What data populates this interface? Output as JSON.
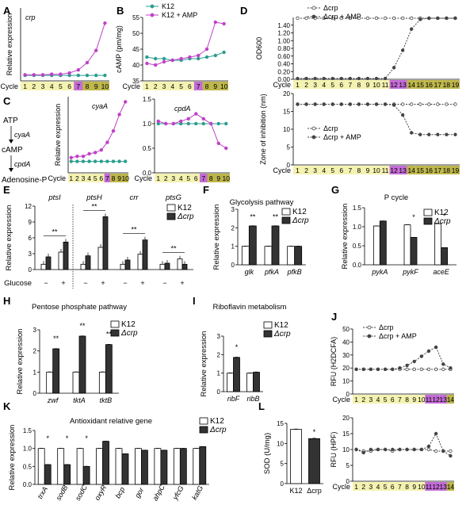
{
  "figure": {
    "panels": {
      "A": {
        "letter": "A"
      },
      "B": {
        "letter": "B"
      },
      "C": {
        "letter": "C"
      },
      "D": {
        "letter": "D"
      },
      "E": {
        "letter": "E"
      },
      "F": {
        "letter": "F"
      },
      "G": {
        "letter": "G"
      },
      "H": {
        "letter": "H"
      },
      "I": {
        "letter": "I"
      },
      "J": {
        "letter": "J"
      },
      "K": {
        "letter": "K"
      },
      "L": {
        "letter": "L"
      }
    },
    "pathway": {
      "atp": "ATP",
      "cyaA": "cyaA",
      "camp": "cAMP",
      "cpdA": "cpdA",
      "adenosine": "Adenosine-P"
    },
    "cycle_word": "Cycle",
    "colors": {
      "k12": "#2a9d8f",
      "amp": "#c040c8",
      "crp": "#333333",
      "hl_yellow": "#f4f2b0",
      "hl_purple": "#c36bd6",
      "hl_olive": "#bdb64a"
    }
  },
  "chart_data": [
    {
      "id": "A",
      "type": "line",
      "ylabel": "Relative expression",
      "xlabel": "Cycle",
      "inset_label": "crp",
      "ylim": [
        0,
        12
      ],
      "categories": [
        "1",
        "2",
        "3",
        "4",
        "5",
        "6",
        "7",
        "8",
        "9",
        "10"
      ],
      "series": [
        {
          "name": "K12",
          "color": "#2a9d8f",
          "values": [
            0.9,
            0.9,
            0.9,
            0.9,
            0.9,
            0.9,
            0.9,
            0.9,
            0.9,
            0.9
          ]
        },
        {
          "name": "K12 + AMP",
          "color": "#c040c8",
          "values": [
            1.0,
            1.0,
            1.0,
            1.1,
            1.1,
            1.3,
            1.8,
            3.0,
            5.0,
            9.5
          ]
        }
      ]
    },
    {
      "id": "B",
      "type": "line",
      "ylabel": "cAMP (pm/mg)",
      "xlabel": "Cycle",
      "ylim": [
        35,
        55
      ],
      "yticks": [
        35,
        40,
        45,
        50,
        55
      ],
      "categories": [
        "1",
        "2",
        "3",
        "4",
        "5",
        "6",
        "7",
        "8",
        "9",
        "10"
      ],
      "series": [
        {
          "name": "K12",
          "color": "#2a9d8f",
          "values": [
            42.5,
            42,
            42,
            41.5,
            41.5,
            42,
            42,
            42.5,
            43,
            44
          ]
        },
        {
          "name": "K12 + AMP",
          "color": "#c040c8",
          "values": [
            40.5,
            40,
            41,
            41.5,
            42,
            42.5,
            43,
            45,
            53.5,
            53
          ]
        }
      ]
    },
    {
      "id": "C1",
      "type": "line",
      "ylabel": "Relative expression",
      "xlabel": "Cycle",
      "inset_label": "cyaA",
      "ylim": [
        0,
        6
      ],
      "categories": [
        "1",
        "2",
        "3",
        "4",
        "5",
        "6",
        "7",
        "8",
        "9",
        "10"
      ],
      "series": [
        {
          "name": "K12",
          "color": "#2a9d8f",
          "values": [
            0.9,
            0.9,
            0.9,
            0.9,
            0.9,
            0.9,
            0.9,
            0.9,
            0.9,
            0.9
          ]
        },
        {
          "name": "K12 + AMP",
          "color": "#c040c8",
          "values": [
            1.2,
            1.3,
            1.3,
            1.5,
            1.6,
            1.8,
            2.4,
            3.3,
            4.6,
            5.6
          ]
        }
      ]
    },
    {
      "id": "C2",
      "type": "line",
      "xlabel": "Cycle",
      "inset_label": "cpdA",
      "ylim": [
        0,
        1.5
      ],
      "yticks": [
        0.0,
        0.5,
        1.0,
        1.5
      ],
      "categories": [
        "1",
        "2",
        "3",
        "4",
        "5",
        "6",
        "7",
        "8",
        "9",
        "10"
      ],
      "series": [
        {
          "name": "K12",
          "color": "#2a9d8f",
          "values": [
            1.0,
            1.0,
            1.0,
            1.0,
            1.0,
            1.0,
            1.0,
            1.0,
            1.0,
            1.0
          ]
        },
        {
          "name": "K12 + AMP",
          "color": "#c040c8",
          "values": [
            1.05,
            1.0,
            1.0,
            1.05,
            1.1,
            1.2,
            1.1,
            1.0,
            0.6,
            0.5
          ]
        }
      ]
    },
    {
      "id": "D1",
      "type": "line",
      "ylabel": "OD600",
      "xlabel": "Cycle",
      "ylim": [
        0,
        1.6
      ],
      "yticks": [
        0.0,
        0.2,
        0.4,
        0.6,
        0.8,
        1.0,
        1.2,
        1.4
      ],
      "categories": [
        "1",
        "2",
        "3",
        "4",
        "5",
        "6",
        "7",
        "8",
        "9",
        "10",
        "11",
        "12",
        "13",
        "14",
        "15",
        "16",
        "17",
        "18",
        "19"
      ],
      "series": [
        {
          "name": "Δcrp",
          "style": "open",
          "values": [
            1.58,
            1.58,
            1.58,
            1.58,
            1.58,
            1.58,
            1.58,
            1.58,
            1.58,
            1.58,
            1.58,
            1.58,
            1.58,
            1.58,
            1.58,
            1.58,
            1.58,
            1.58,
            1.58
          ]
        },
        {
          "name": "Δcrp + AMP",
          "style": "filled",
          "values": [
            0.02,
            0.02,
            0.02,
            0.02,
            0.02,
            0.02,
            0.02,
            0.02,
            0.02,
            0.02,
            0.02,
            0.3,
            0.75,
            1.3,
            1.55,
            1.58,
            1.58,
            1.58,
            1.58
          ]
        }
      ]
    },
    {
      "id": "D2",
      "type": "line",
      "ylabel": "Zone of inhibition (nm)",
      "xlabel": "Cycle",
      "ylim": [
        0,
        20
      ],
      "yticks": [
        0,
        5,
        10,
        15,
        20
      ],
      "categories": [
        "1",
        "2",
        "3",
        "4",
        "5",
        "6",
        "7",
        "8",
        "9",
        "10",
        "11",
        "12",
        "13",
        "14",
        "15",
        "16",
        "17",
        "18",
        "19"
      ],
      "series": [
        {
          "name": "Δcrp",
          "style": "open",
          "values": [
            17,
            17,
            17,
            17,
            17,
            17,
            17,
            17,
            17,
            17,
            17,
            17,
            17,
            17,
            17,
            17,
            17,
            17,
            17
          ]
        },
        {
          "name": "Δcrp + AMP",
          "style": "filled",
          "values": [
            17,
            17,
            17,
            17,
            17,
            17,
            17,
            17,
            17,
            17,
            17,
            16.8,
            14,
            9,
            8.5,
            8.5,
            8.5,
            8.5,
            8.5
          ]
        }
      ]
    },
    {
      "id": "E",
      "type": "bar",
      "ylabel": "Relative expression",
      "ylim": [
        0,
        12
      ],
      "yticks": [
        0,
        3,
        6,
        9,
        12
      ],
      "groups": [
        "ptsI",
        "ptsH",
        "crr",
        "ptsG"
      ],
      "conditions": [
        "−",
        "+"
      ],
      "condition_label": "Glucose",
      "series": [
        {
          "name": "K12",
          "values": [
            1.0,
            3.3,
            1.0,
            4.2,
            1.0,
            2.9,
            1.0,
            2.0
          ]
        },
        {
          "name": "Δcrp",
          "values": [
            2.4,
            5.2,
            2.6,
            10.0,
            1.8,
            5.6,
            1.2,
            1.0
          ]
        }
      ],
      "stars": [
        "**",
        "**",
        "**",
        "**"
      ]
    },
    {
      "id": "F",
      "type": "bar",
      "title": "Glycolysis pathway",
      "ylabel": "Relative expression",
      "ylim": [
        0,
        3
      ],
      "yticks": [
        0,
        1,
        2,
        3
      ],
      "categories": [
        "glk",
        "pfkA",
        "pfkB"
      ],
      "series": [
        {
          "name": "K12",
          "values": [
            1.0,
            1.0,
            1.0
          ]
        },
        {
          "name": "Δcrp",
          "values": [
            2.1,
            2.1,
            1.0
          ]
        }
      ],
      "stars": [
        "**",
        "**",
        ""
      ]
    },
    {
      "id": "G",
      "type": "bar",
      "title": "P cycle",
      "ylabel": "Relative expression",
      "ylim": [
        0,
        1.5
      ],
      "yticks": [
        0.0,
        0.5,
        1.0,
        1.5
      ],
      "categories": [
        "pykA",
        "pykF",
        "aceE"
      ],
      "series": [
        {
          "name": "K12",
          "values": [
            1.02,
            1.05,
            1.08
          ]
        },
        {
          "name": "Δcrp",
          "values": [
            1.15,
            0.72,
            0.45
          ]
        }
      ],
      "stars": [
        "",
        "*",
        "*"
      ]
    },
    {
      "id": "H",
      "type": "bar",
      "title": "Pentose phosphate pathway",
      "ylabel": "Relative expression",
      "ylim": [
        0,
        3
      ],
      "yticks": [
        0,
        1,
        2,
        3
      ],
      "categories": [
        "zwf",
        "tktA",
        "tktB"
      ],
      "series": [
        {
          "name": "K12",
          "values": [
            1.0,
            1.0,
            1.0
          ]
        },
        {
          "name": "Δcrp",
          "values": [
            2.1,
            2.7,
            2.3
          ]
        }
      ],
      "stars": [
        "**",
        "**",
        "**"
      ]
    },
    {
      "id": "I",
      "type": "bar",
      "title": "Riboflavin metabolism",
      "ylabel": "Relative expression",
      "ylim": [
        0,
        3
      ],
      "yticks": [
        0,
        1,
        2,
        3
      ],
      "categories": [
        "ribF",
        "ribB"
      ],
      "series": [
        {
          "name": "K12",
          "values": [
            1.0,
            1.0
          ]
        },
        {
          "name": "Δcrp",
          "values": [
            1.85,
            1.05
          ]
        }
      ],
      "stars": [
        "*",
        ""
      ]
    },
    {
      "id": "J1",
      "type": "line",
      "ylabel": "RFU (H2DCFA)",
      "xlabel": "Cycle",
      "ylim": [
        0,
        50
      ],
      "yticks": [
        0,
        10,
        20,
        30,
        40,
        50
      ],
      "categories": [
        "1",
        "2",
        "3",
        "4",
        "5",
        "6",
        "7",
        "8",
        "9",
        "10",
        "11",
        "12",
        "13",
        "14"
      ],
      "series": [
        {
          "name": "Δcrp",
          "style": "open",
          "values": [
            19,
            19,
            19,
            19,
            19,
            19,
            19,
            19,
            19,
            19,
            19,
            19,
            19,
            19
          ]
        },
        {
          "name": "Δcrp + AMP",
          "style": "filled",
          "values": [
            19,
            19,
            19,
            19,
            19,
            19,
            20,
            22,
            25,
            29,
            33,
            36,
            23,
            20
          ]
        }
      ]
    },
    {
      "id": "J2",
      "type": "line",
      "ylabel": "RFU (HPF)",
      "xlabel": "Cycle",
      "ylim": [
        0,
        20
      ],
      "yticks": [
        0,
        5,
        10,
        15,
        20
      ],
      "categories": [
        "1",
        "2",
        "3",
        "4",
        "5",
        "6",
        "7",
        "8",
        "9",
        "10",
        "11",
        "12",
        "13",
        "14"
      ],
      "series": [
        {
          "name": "Δcrp",
          "style": "open",
          "values": [
            10,
            9.5,
            9.5,
            10,
            10,
            9.5,
            10,
            10,
            10,
            10,
            10,
            9.5,
            9.5,
            9.5
          ]
        },
        {
          "name": "Δcrp + AMP",
          "style": "filled",
          "values": [
            10,
            9,
            10,
            10,
            10,
            10,
            10,
            10,
            10,
            10,
            11,
            15,
            9.5,
            8
          ]
        }
      ]
    },
    {
      "id": "K",
      "type": "bar",
      "title": "Antioxidant relative gene",
      "ylabel": "Relative expression",
      "ylim": [
        0,
        1.5
      ],
      "yticks": [
        0.0,
        0.5,
        1.0,
        1.5
      ],
      "categories": [
        "trxA",
        "sodB",
        "sodC",
        "oxyR",
        "bcp",
        "gor",
        "ahpC",
        "yfcG",
        "katG"
      ],
      "series": [
        {
          "name": "K12",
          "values": [
            1.0,
            1.0,
            1.0,
            1.0,
            1.0,
            1.0,
            1.0,
            1.0,
            1.0
          ]
        },
        {
          "name": "Δcrp",
          "values": [
            0.55,
            0.55,
            0.5,
            1.2,
            0.85,
            0.95,
            0.95,
            1.0,
            1.05
          ]
        }
      ],
      "stars": [
        "*",
        "*",
        "*",
        "",
        "",
        "",
        "",
        "",
        ""
      ]
    },
    {
      "id": "L",
      "type": "bar",
      "ylabel": "SOD (U/mg)",
      "ylim": [
        0,
        15
      ],
      "yticks": [
        0,
        5,
        10,
        15
      ],
      "categories": [
        "K12",
        "Δcrp"
      ],
      "values": [
        13.5,
        11.2
      ],
      "stars": [
        "",
        "*"
      ]
    }
  ]
}
